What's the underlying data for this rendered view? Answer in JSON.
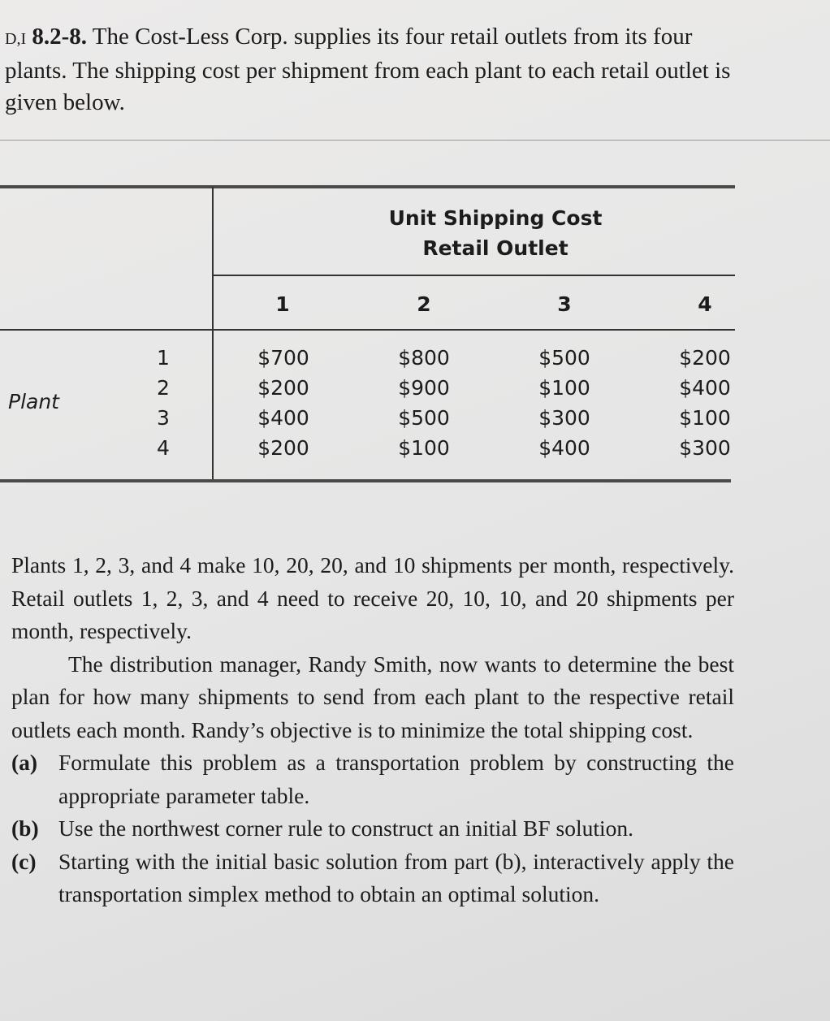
{
  "problem": {
    "tag": "D,I",
    "number": "8.2-8.",
    "intro": "The Cost-Less Corp. supplies its four retail outlets from its four plants. The shipping cost per shipment from each plant to each retail outlet is given below."
  },
  "table": {
    "title": "Unit Shipping Cost",
    "subtitle": "Retail Outlet",
    "row_label": "Plant",
    "columns": [
      "1",
      "2",
      "3",
      "4"
    ],
    "rows": [
      {
        "plant": "1",
        "costs": [
          "$700",
          "$800",
          "$500",
          "$200"
        ]
      },
      {
        "plant": "2",
        "costs": [
          "$200",
          "$900",
          "$100",
          "$400"
        ]
      },
      {
        "plant": "3",
        "costs": [
          "$400",
          "$500",
          "$300",
          "$100"
        ]
      },
      {
        "plant": "4",
        "costs": [
          "$200",
          "$100",
          "$400",
          "$300"
        ]
      }
    ]
  },
  "body": {
    "p1": "Plants 1, 2, 3, and 4 make 10, 20, 20, and 10 shipments per month, respectively. Retail outlets 1, 2, 3, and 4 need to receive 20, 10, 10, and 20 shipments per month, respectively.",
    "p2": "The distribution manager, Randy Smith, now wants to determine the best plan for how many shipments to send from each plant to the respective retail outlets each month. Randy’s objective is to minimize the total shipping cost.",
    "parts": [
      {
        "label": "(a)",
        "text": "Formulate this problem as a transportation problem by constructing the appropriate parameter table."
      },
      {
        "label": "(b)",
        "text": "Use the northwest corner rule to construct an initial BF solution."
      },
      {
        "label": "(c)",
        "text": "Starting with the initial basic solution from part (b), interactively apply the transportation simplex method to obtain an optimal solution."
      }
    ]
  }
}
